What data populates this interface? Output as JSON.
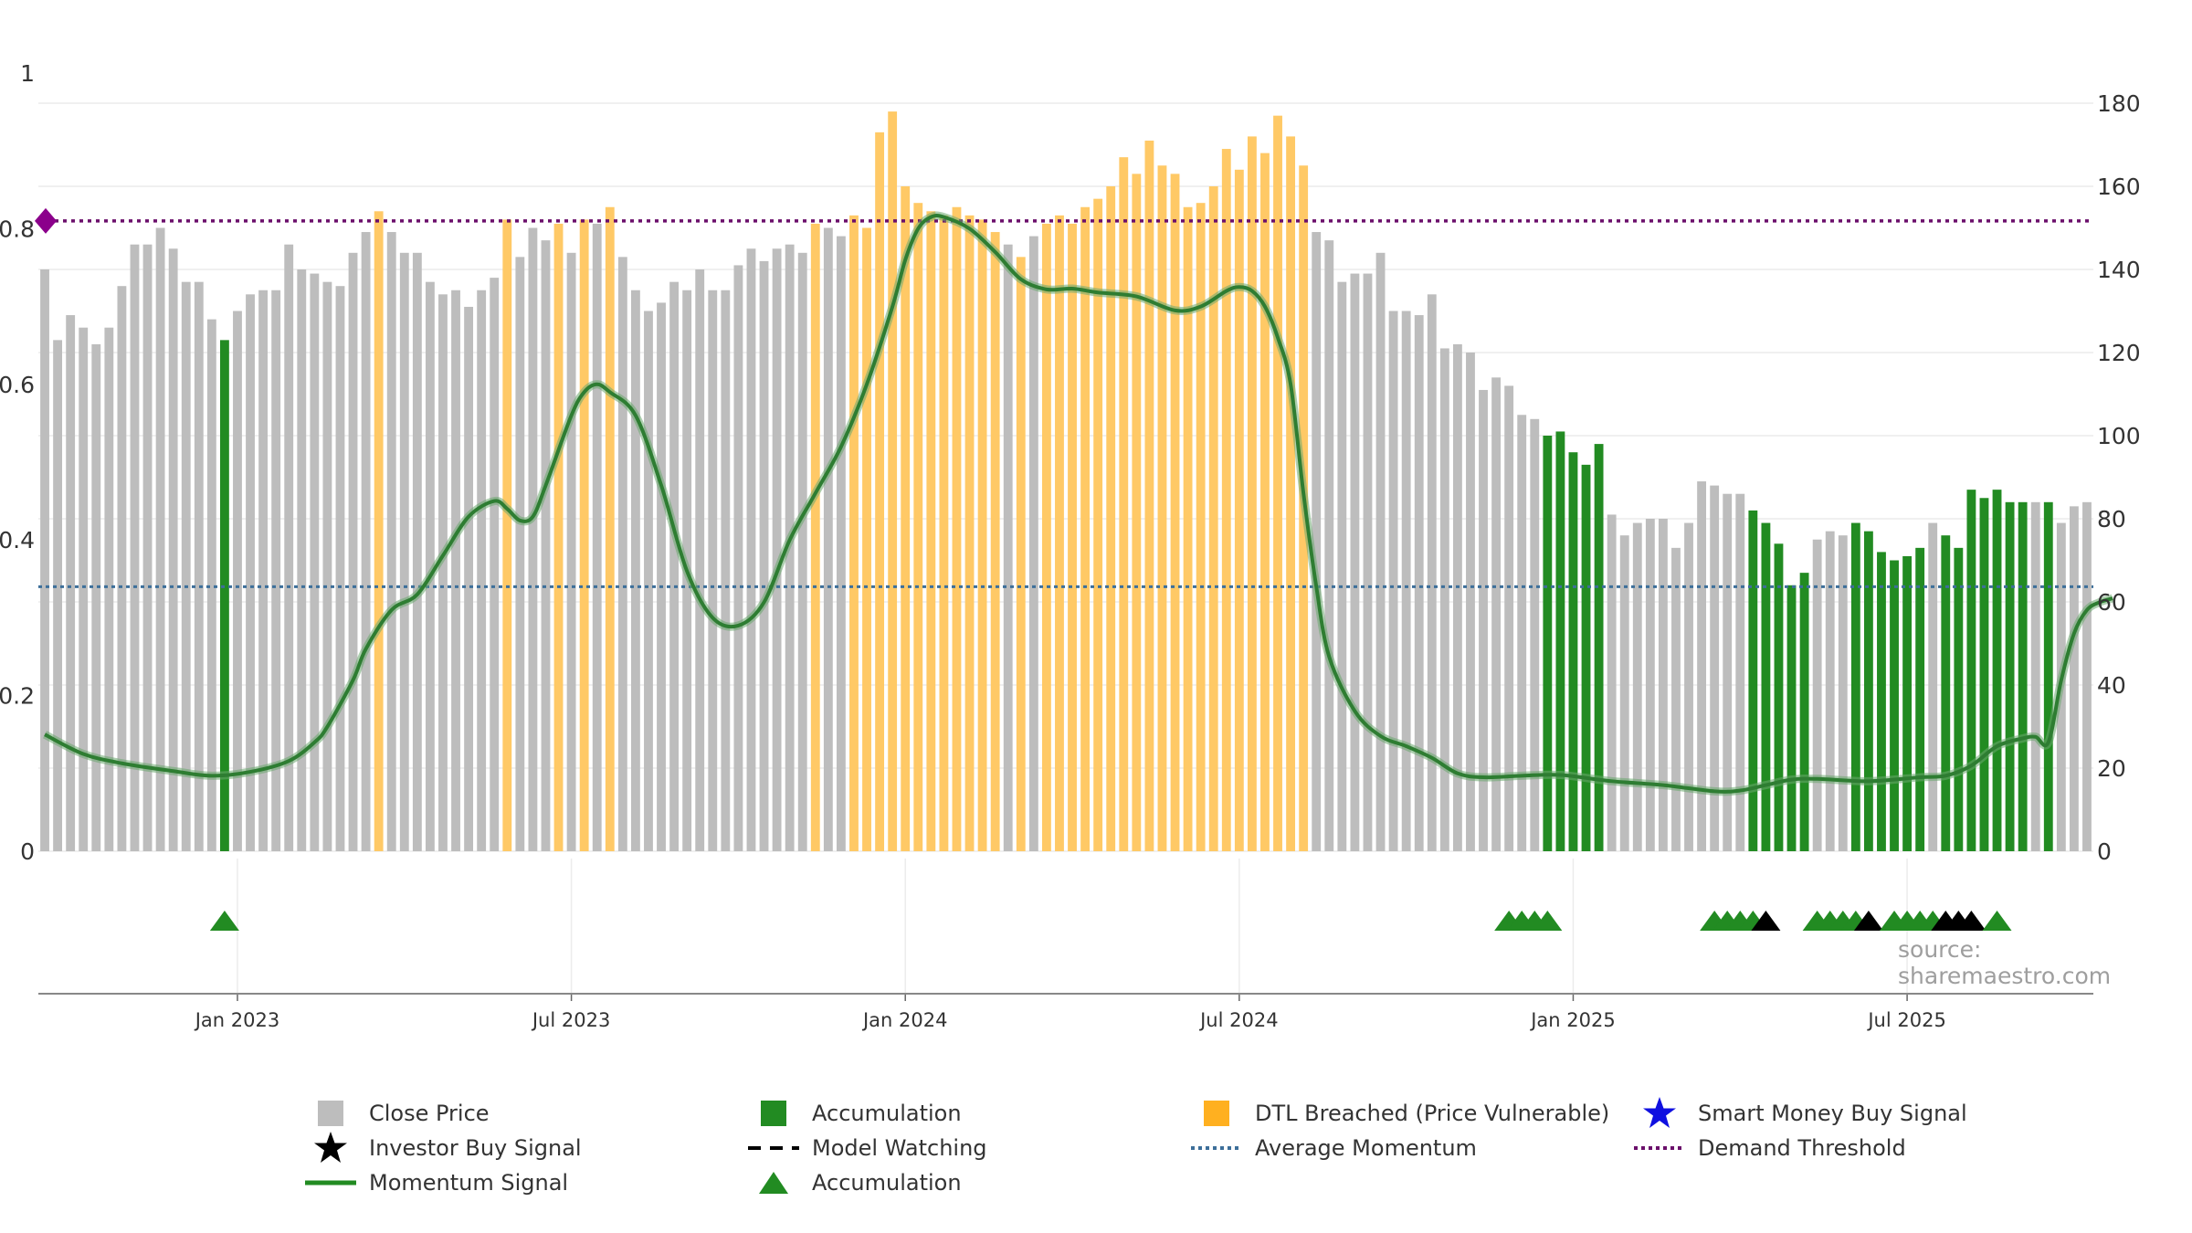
{
  "colors": {
    "close_price": "#bdbdbd",
    "accumulation": "#228b22",
    "dtl_breached": "#ffc966",
    "momentum": "#2e7d32",
    "average_momentum": "#3d6f9a",
    "demand_threshold": "#6b0f6b",
    "smart_money": "#1010e0",
    "investor_buy": "#000000",
    "grid": "#ececec",
    "source": "#9e9e9e"
  },
  "source": "source: sharemaestro.com",
  "legend": [
    {
      "key": "close",
      "label": "Close Price",
      "icon": "square-icon",
      "color": "#bdbdbd"
    },
    {
      "key": "accum_bar",
      "label": "Accumulation",
      "icon": "square-icon",
      "color": "#228b22"
    },
    {
      "key": "dtl",
      "label": "DTL Breached (Price Vulnerable)",
      "icon": "square-icon",
      "color": "#ffb020"
    },
    {
      "key": "smart",
      "label": "Smart Money Buy Signal",
      "icon": "star-icon",
      "color": "#1010e0"
    },
    {
      "key": "investor",
      "label": "Investor Buy Signal",
      "icon": "star-icon",
      "color": "#000000"
    },
    {
      "key": "watch",
      "label": "Model Watching",
      "icon": "dashed-line-icon",
      "color": "#000000"
    },
    {
      "key": "avg",
      "label": "Average Momentum",
      "icon": "dotted-line-icon",
      "color": "#3d6f9a"
    },
    {
      "key": "demand",
      "label": "Demand Threshold",
      "icon": "dotted-line-icon",
      "color": "#6b0f6b"
    },
    {
      "key": "momentum",
      "label": "Momentum Signal",
      "icon": "line-icon",
      "color": "#228b22"
    },
    {
      "key": "accum_tri",
      "label": "Accumulation",
      "icon": "triangle-icon",
      "color": "#228b22"
    }
  ],
  "chart_data": {
    "type": "bar",
    "left_axis": {
      "ticks": [
        "0",
        "0.2",
        "0.4",
        "0.6",
        "0.8",
        "1"
      ],
      "range": [
        0,
        1
      ]
    },
    "right_axis": {
      "ticks": [
        "0",
        "20",
        "40",
        "60",
        "80",
        "100",
        "120",
        "140",
        "160",
        "180"
      ],
      "range": [
        0,
        180
      ]
    },
    "x_ticks": [
      "Jan 2023",
      "Jul 2023",
      "Jan 2024",
      "Jul 2024",
      "Jan 2025",
      "Jul 2025"
    ],
    "x_tick_week_index": [
      15,
      41,
      67,
      93,
      119,
      145
    ],
    "average_momentum": 0.34,
    "demand_threshold": 0.81,
    "grid": true,
    "close_price_weekly": [
      140,
      123,
      129,
      126,
      122,
      126,
      136,
      146,
      146,
      150,
      145,
      137,
      137,
      128,
      123,
      130,
      134,
      135,
      135,
      146,
      140,
      139,
      137,
      136,
      144,
      149,
      154,
      149,
      144,
      144,
      137,
      134,
      135,
      131,
      135,
      138,
      152,
      143,
      150,
      147,
      151,
      144,
      152,
      151,
      155,
      143,
      135,
      130,
      132,
      137,
      135,
      140,
      135,
      135,
      141,
      145,
      142,
      145,
      146,
      144,
      151,
      150,
      148,
      153,
      150,
      173,
      178,
      160,
      156,
      154,
      153,
      155,
      153,
      152,
      149,
      146,
      143,
      148,
      151,
      153,
      151,
      155,
      157,
      160,
      167,
      163,
      171,
      165,
      163,
      155,
      156,
      160,
      169,
      164,
      172,
      168,
      177,
      172,
      165,
      149,
      147,
      137,
      139,
      139,
      144,
      130,
      130,
      129,
      134,
      121,
      122,
      120,
      111,
      114,
      112,
      105,
      104,
      100,
      101,
      96,
      93,
      98,
      81,
      76,
      79,
      80,
      80,
      73,
      79,
      89,
      88,
      86,
      86,
      82,
      79,
      74,
      64,
      67,
      75,
      77,
      76,
      79,
      77,
      72,
      70,
      71,
      73,
      79,
      76,
      73,
      87,
      85,
      87,
      84,
      84,
      84,
      84,
      79,
      83,
      84
    ],
    "bar_category": [
      "c",
      "c",
      "c",
      "c",
      "c",
      "c",
      "c",
      "c",
      "c",
      "c",
      "c",
      "c",
      "c",
      "c",
      "a",
      "c",
      "c",
      "c",
      "c",
      "c",
      "c",
      "c",
      "c",
      "c",
      "c",
      "c",
      "d",
      "c",
      "c",
      "c",
      "c",
      "c",
      "c",
      "c",
      "c",
      "c",
      "d",
      "c",
      "c",
      "c",
      "d",
      "c",
      "d",
      "c",
      "d",
      "c",
      "c",
      "c",
      "c",
      "c",
      "c",
      "c",
      "c",
      "c",
      "c",
      "c",
      "c",
      "c",
      "c",
      "c",
      "d",
      "c",
      "c",
      "d",
      "d",
      "d",
      "d",
      "d",
      "d",
      "d",
      "d",
      "d",
      "d",
      "d",
      "d",
      "c",
      "d",
      "c",
      "d",
      "d",
      "d",
      "d",
      "d",
      "d",
      "d",
      "d",
      "d",
      "d",
      "d",
      "d",
      "d",
      "d",
      "d",
      "d",
      "d",
      "d",
      "d",
      "d",
      "d",
      "c",
      "c",
      "c",
      "c",
      "c",
      "c",
      "c",
      "c",
      "c",
      "c",
      "c",
      "c",
      "c",
      "c",
      "c",
      "c",
      "c",
      "c",
      "a",
      "a",
      "a",
      "a",
      "a",
      "c",
      "c",
      "c",
      "c",
      "c",
      "c",
      "c",
      "c",
      "c",
      "c",
      "c",
      "a",
      "a",
      "a",
      "a",
      "a",
      "c",
      "c",
      "c",
      "a",
      "a",
      "a",
      "a",
      "a",
      "a",
      "c",
      "a",
      "a",
      "a",
      "a",
      "a",
      "a",
      "a",
      "c",
      "a",
      "c",
      "c",
      "c"
    ],
    "momentum": [
      [
        0,
        0.15
      ],
      [
        3,
        0.125
      ],
      [
        6,
        0.113
      ],
      [
        10,
        0.103
      ],
      [
        13,
        0.097
      ],
      [
        16,
        0.102
      ],
      [
        19,
        0.116
      ],
      [
        21,
        0.14
      ],
      [
        22,
        0.16
      ],
      [
        24,
        0.22
      ],
      [
        25,
        0.26
      ],
      [
        27,
        0.31
      ],
      [
        29,
        0.33
      ],
      [
        31,
        0.38
      ],
      [
        33,
        0.43
      ],
      [
        35,
        0.45
      ],
      [
        36,
        0.44
      ],
      [
        37,
        0.425
      ],
      [
        38,
        0.43
      ],
      [
        39,
        0.47
      ],
      [
        41,
        0.56
      ],
      [
        42,
        0.59
      ],
      [
        43,
        0.6
      ],
      [
        44,
        0.59
      ],
      [
        46,
        0.56
      ],
      [
        48,
        0.47
      ],
      [
        50,
        0.36
      ],
      [
        52,
        0.3
      ],
      [
        54,
        0.29
      ],
      [
        56,
        0.32
      ],
      [
        58,
        0.4
      ],
      [
        60,
        0.46
      ],
      [
        62,
        0.52
      ],
      [
        64,
        0.6
      ],
      [
        66,
        0.7
      ],
      [
        67,
        0.76
      ],
      [
        68,
        0.8
      ],
      [
        69,
        0.815
      ],
      [
        70,
        0.815
      ],
      [
        72,
        0.8
      ],
      [
        74,
        0.77
      ],
      [
        76,
        0.735
      ],
      [
        78,
        0.722
      ],
      [
        80,
        0.723
      ],
      [
        82,
        0.718
      ],
      [
        85,
        0.713
      ],
      [
        88,
        0.695
      ],
      [
        90,
        0.7
      ],
      [
        92,
        0.72
      ],
      [
        93,
        0.725
      ],
      [
        94,
        0.72
      ],
      [
        95,
        0.7
      ],
      [
        96,
        0.66
      ],
      [
        97,
        0.6
      ],
      [
        98,
        0.46
      ],
      [
        99,
        0.34
      ],
      [
        100,
        0.25
      ],
      [
        102,
        0.18
      ],
      [
        104,
        0.148
      ],
      [
        106,
        0.135
      ],
      [
        108,
        0.12
      ],
      [
        110,
        0.1
      ],
      [
        112,
        0.095
      ],
      [
        115,
        0.097
      ],
      [
        118,
        0.098
      ],
      [
        122,
        0.09
      ],
      [
        126,
        0.085
      ],
      [
        130,
        0.077
      ],
      [
        132,
        0.078
      ],
      [
        134,
        0.085
      ],
      [
        136,
        0.092
      ],
      [
        138,
        0.093
      ],
      [
        142,
        0.09
      ],
      [
        146,
        0.095
      ],
      [
        148,
        0.097
      ],
      [
        150,
        0.11
      ],
      [
        152,
        0.135
      ],
      [
        154,
        0.145
      ],
      [
        155,
        0.147
      ],
      [
        156,
        0.14
      ],
      [
        157,
        0.22
      ],
      [
        158,
        0.28
      ],
      [
        159,
        0.31
      ],
      [
        160,
        0.32
      ],
      [
        161,
        0.325
      ]
    ],
    "signals": [
      {
        "week": 14,
        "type": "accumulation"
      },
      {
        "week": 114,
        "type": "accumulation"
      },
      {
        "week": 115,
        "type": "accumulation"
      },
      {
        "week": 116,
        "type": "accumulation"
      },
      {
        "week": 117,
        "type": "accumulation"
      },
      {
        "week": 130,
        "type": "accumulation"
      },
      {
        "week": 131,
        "type": "accumulation"
      },
      {
        "week": 132,
        "type": "accumulation"
      },
      {
        "week": 133,
        "type": "accumulation"
      },
      {
        "week": 134,
        "type": "investor"
      },
      {
        "week": 138,
        "type": "accumulation"
      },
      {
        "week": 139,
        "type": "accumulation"
      },
      {
        "week": 140,
        "type": "accumulation"
      },
      {
        "week": 141,
        "type": "accumulation"
      },
      {
        "week": 142,
        "type": "investor"
      },
      {
        "week": 144,
        "type": "accumulation"
      },
      {
        "week": 145,
        "type": "accumulation"
      },
      {
        "week": 146,
        "type": "accumulation"
      },
      {
        "week": 147,
        "type": "accumulation"
      },
      {
        "week": 148,
        "type": "investor"
      },
      {
        "week": 149,
        "type": "investor"
      },
      {
        "week": 150,
        "type": "investor"
      },
      {
        "week": 152,
        "type": "accumulation"
      }
    ]
  }
}
